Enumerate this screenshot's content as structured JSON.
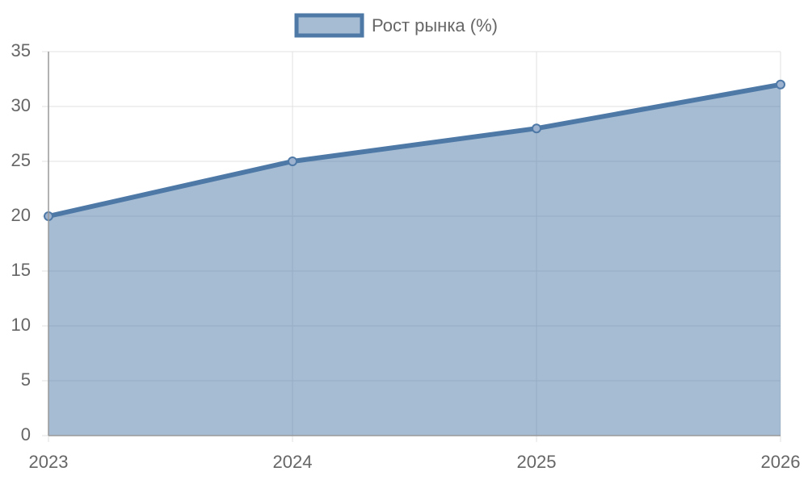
{
  "chart_data": {
    "type": "area",
    "categories": [
      "2023",
      "2024",
      "2025",
      "2026"
    ],
    "series": [
      {
        "name": "Рост рынка (%)",
        "color": "#4e79a7",
        "values": [
          20,
          25,
          28,
          32
        ]
      }
    ],
    "ylim": [
      0,
      35
    ],
    "yticks": [
      0,
      5,
      10,
      15,
      20,
      25,
      30,
      35
    ],
    "grid": true,
    "legend": "top"
  }
}
